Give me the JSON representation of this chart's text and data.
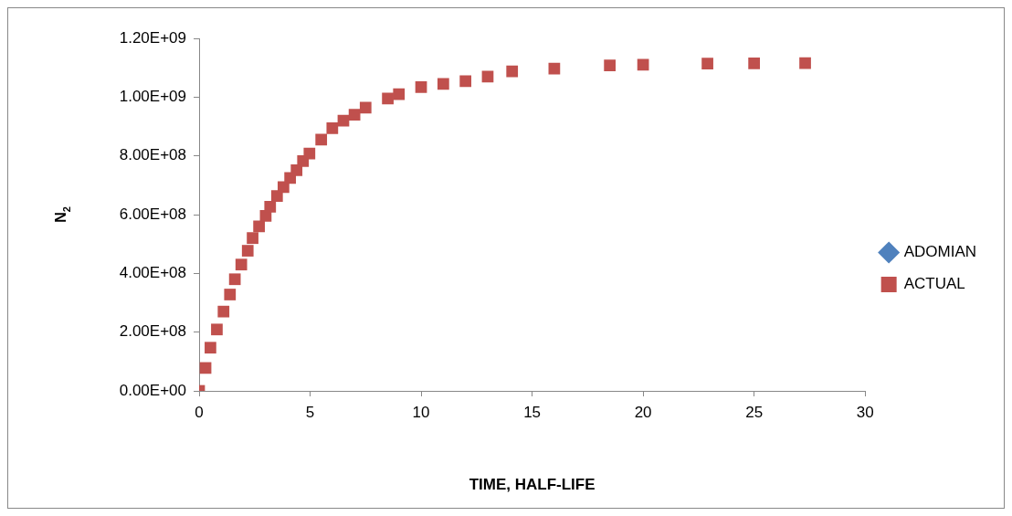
{
  "chart_data": {
    "type": "scatter",
    "xlabel": "TIME, HALF-LIFE",
    "ylabel": "N$_{2}$",
    "x": [
      0,
      0.29,
      0.51,
      0.8,
      1.1,
      1.39,
      1.61,
      1.9,
      2.19,
      2.41,
      2.7,
      3.0,
      3.2,
      3.51,
      3.8,
      4.1,
      4.39,
      4.68,
      4.97,
      5.5,
      6,
      6.5,
      7,
      7.5,
      8.5,
      9,
      10,
      11,
      12,
      13,
      14.1,
      16,
      18.5,
      20,
      22.9,
      25,
      27.3
    ],
    "series": [
      {
        "name": "ADOMIAN",
        "color": "#4f81bd",
        "marker": "diamond",
        "values": [
          null,
          null,
          null,
          null,
          null,
          null,
          null,
          null,
          null,
          null,
          null,
          null,
          null,
          null,
          null,
          null,
          null,
          null,
          null,
          null,
          null,
          null,
          null,
          null,
          null,
          null,
          null,
          null,
          null,
          null,
          null,
          null,
          null,
          null,
          null,
          null,
          null
        ]
      },
      {
        "name": "ACTUAL",
        "color": "#c0504d",
        "marker": "square",
        "values": [
          0,
          78000000,
          147000000,
          209000000,
          270000000,
          328000000,
          380000000,
          430000000,
          477000000,
          520000000,
          560000000,
          596000000,
          627000000,
          663000000,
          694000000,
          725000000,
          751000000,
          782000000,
          808000000,
          855000000,
          894000000,
          920000000,
          940000000,
          964000000,
          995000000,
          1010000000,
          1034000000,
          1045000000,
          1054000000,
          1070000000,
          1088000000,
          1097000000,
          1108000000,
          1110000000,
          1114000000,
          1115000000,
          1116000000
        ]
      }
    ],
    "xlim": [
      0,
      30
    ],
    "xticks": [
      0,
      5,
      10,
      15,
      20,
      25,
      30
    ],
    "ylim": [
      0,
      1200000000
    ],
    "yticks": [
      {
        "value": 0,
        "label": "0.00E+00"
      },
      {
        "value": 200000000,
        "label": "2.00E+08"
      },
      {
        "value": 400000000,
        "label": "4.00E+08"
      },
      {
        "value": 600000000,
        "label": "6.00E+08"
      },
      {
        "value": 800000000,
        "label": "8.00E+08"
      },
      {
        "value": 1000000000,
        "label": "1.00E+09"
      },
      {
        "value": 1200000000,
        "label": "1.20E+09"
      }
    ],
    "grid": false,
    "legend": "right"
  }
}
